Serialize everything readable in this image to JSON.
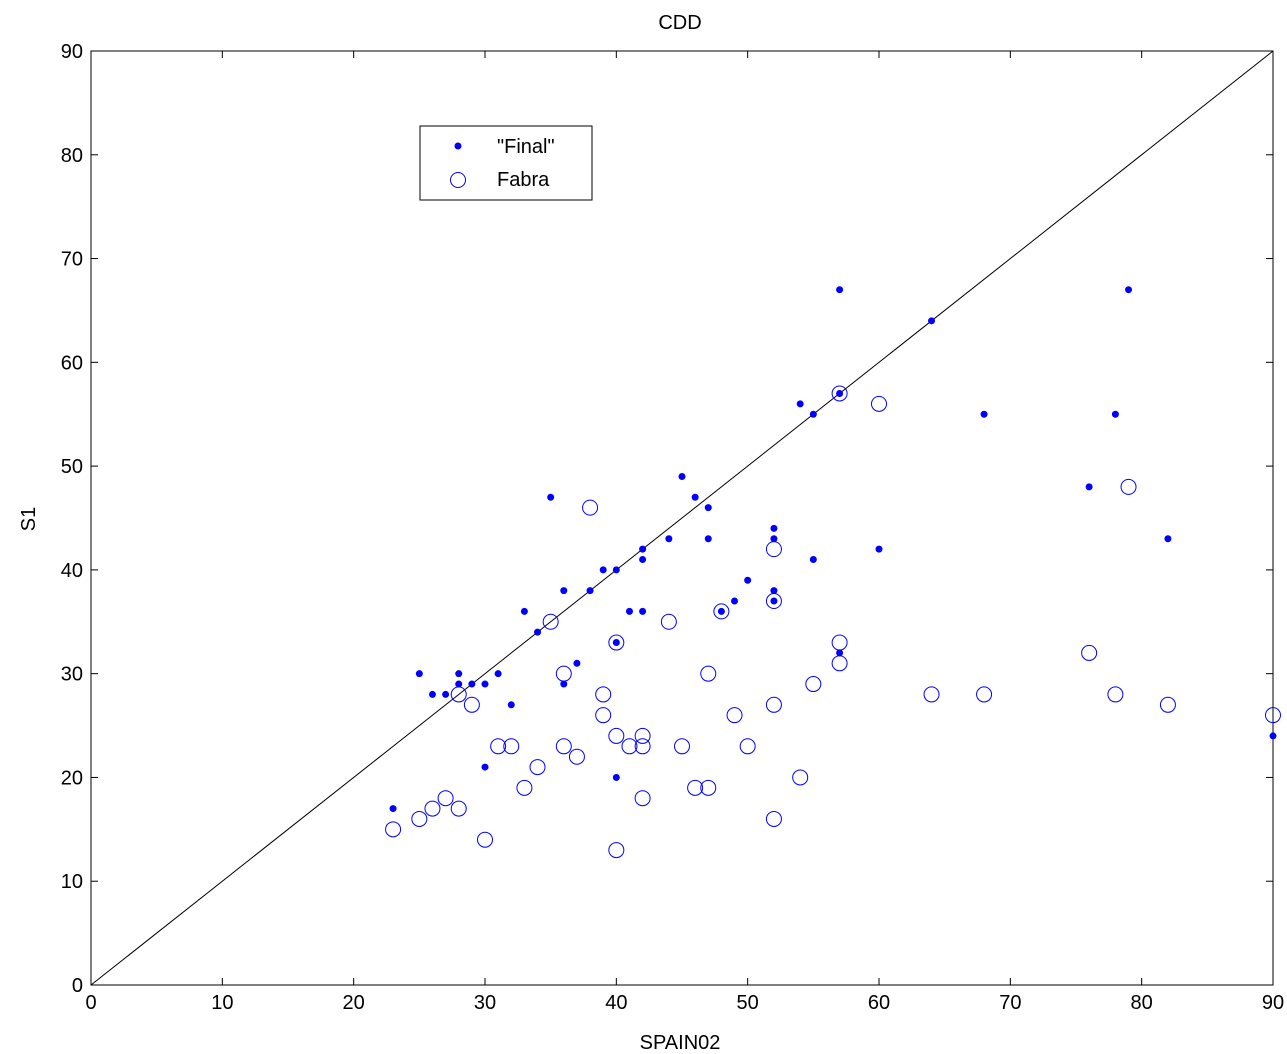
{
  "chart_data": {
    "type": "scatter",
    "title": "CDD",
    "xlabel": "SPAIN02",
    "ylabel": "S1",
    "xlim": [
      0,
      90
    ],
    "ylim": [
      0,
      90
    ],
    "xticks": [
      "0",
      "10",
      "20",
      "30",
      "40",
      "50",
      "60",
      "70",
      "80",
      "90"
    ],
    "yticks": [
      "0",
      "10",
      "20",
      "30",
      "40",
      "50",
      "60",
      "70",
      "80",
      "90"
    ],
    "reference_line": {
      "from": [
        0,
        0
      ],
      "to": [
        90,
        90
      ],
      "color": "#000000"
    },
    "legend": {
      "position": "top-left inside"
    },
    "series": [
      {
        "name": "\"Final\"",
        "marker": "dot",
        "color": "#0000ff",
        "points": [
          [
            23,
            17
          ],
          [
            25,
            30
          ],
          [
            26,
            28
          ],
          [
            27,
            28
          ],
          [
            28,
            30
          ],
          [
            28,
            29
          ],
          [
            29,
            29
          ],
          [
            30,
            29
          ],
          [
            30,
            21
          ],
          [
            31,
            30
          ],
          [
            32,
            27
          ],
          [
            33,
            36
          ],
          [
            34,
            34
          ],
          [
            35,
            47
          ],
          [
            36,
            38
          ],
          [
            36,
            29
          ],
          [
            37,
            31
          ],
          [
            38,
            38
          ],
          [
            39,
            40
          ],
          [
            40,
            40
          ],
          [
            40,
            33
          ],
          [
            40,
            20
          ],
          [
            41,
            36
          ],
          [
            42,
            42
          ],
          [
            42,
            41
          ],
          [
            42,
            36
          ],
          [
            44,
            43
          ],
          [
            45,
            49
          ],
          [
            46,
            47
          ],
          [
            47,
            46
          ],
          [
            47,
            43
          ],
          [
            48,
            36
          ],
          [
            49,
            37
          ],
          [
            50,
            39
          ],
          [
            52,
            44
          ],
          [
            52,
            43
          ],
          [
            52,
            38
          ],
          [
            52,
            37
          ],
          [
            54,
            56
          ],
          [
            55,
            55
          ],
          [
            55,
            41
          ],
          [
            57,
            67
          ],
          [
            57,
            57
          ],
          [
            57,
            32
          ],
          [
            60,
            42
          ],
          [
            64,
            64
          ],
          [
            68,
            55
          ],
          [
            76,
            48
          ],
          [
            78,
            55
          ],
          [
            79,
            67
          ],
          [
            82,
            43
          ],
          [
            90,
            24
          ]
        ]
      },
      {
        "name": "Fabra",
        "marker": "circle",
        "color": "#0000ff",
        "points": [
          [
            23,
            15
          ],
          [
            25,
            16
          ],
          [
            26,
            17
          ],
          [
            27,
            18
          ],
          [
            28,
            17
          ],
          [
            28,
            28
          ],
          [
            29,
            27
          ],
          [
            30,
            14
          ],
          [
            31,
            23
          ],
          [
            32,
            23
          ],
          [
            33,
            19
          ],
          [
            34,
            21
          ],
          [
            35,
            35
          ],
          [
            36,
            30
          ],
          [
            36,
            23
          ],
          [
            37,
            22
          ],
          [
            38,
            46
          ],
          [
            39,
            28
          ],
          [
            39,
            26
          ],
          [
            40,
            33
          ],
          [
            40,
            24
          ],
          [
            40,
            13
          ],
          [
            41,
            23
          ],
          [
            42,
            24
          ],
          [
            42,
            23
          ],
          [
            42,
            18
          ],
          [
            44,
            35
          ],
          [
            45,
            23
          ],
          [
            46,
            19
          ],
          [
            47,
            30
          ],
          [
            47,
            19
          ],
          [
            48,
            36
          ],
          [
            49,
            26
          ],
          [
            50,
            23
          ],
          [
            52,
            42
          ],
          [
            52,
            37
          ],
          [
            52,
            27
          ],
          [
            52,
            16
          ],
          [
            54,
            20
          ],
          [
            55,
            29
          ],
          [
            57,
            57
          ],
          [
            57,
            33
          ],
          [
            57,
            31
          ],
          [
            60,
            56
          ],
          [
            64,
            28
          ],
          [
            68,
            28
          ],
          [
            76,
            32
          ],
          [
            78,
            28
          ],
          [
            79,
            48
          ],
          [
            82,
            27
          ],
          [
            90,
            26
          ]
        ]
      }
    ]
  }
}
